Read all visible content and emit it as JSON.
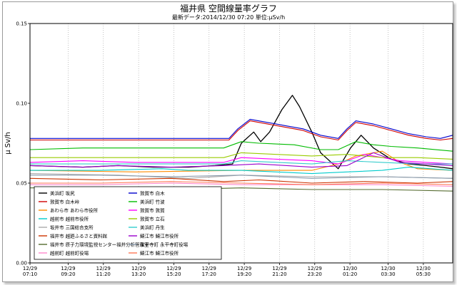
{
  "header": {
    "title": "福井県 空間線量率グラフ",
    "subtitle": "最新データ:2014/12/30 07:20 単位:μSv/h"
  },
  "chart_data": {
    "type": "line",
    "ylabel": "μ Sv/h",
    "ylim": [
      0,
      0.15
    ],
    "yticks": [
      "0.00",
      "0.05",
      "0.10",
      "0.15"
    ],
    "x_range_hours": [
      0,
      24.0
    ],
    "xticks": [
      {
        "h": 0,
        "date": "12/29",
        "time": "07:10"
      },
      {
        "h": 2.1667,
        "date": "12/29",
        "time": "09:20"
      },
      {
        "h": 4.1667,
        "date": "12/29",
        "time": "11:20"
      },
      {
        "h": 6.1667,
        "date": "12/29",
        "time": "13:20"
      },
      {
        "h": 8.1667,
        "date": "12/29",
        "time": "15:20"
      },
      {
        "h": 10.1667,
        "date": "12/29",
        "time": "17:20"
      },
      {
        "h": 12.1667,
        "date": "12/29",
        "time": "19:20"
      },
      {
        "h": 14.1667,
        "date": "12/29",
        "time": "21:20"
      },
      {
        "h": 16.1667,
        "date": "12/29",
        "time": "23:20"
      },
      {
        "h": 18.1667,
        "date": "12/30",
        "time": "01:20"
      },
      {
        "h": 20.3333,
        "date": "12/30",
        "time": "03:30"
      },
      {
        "h": 22.3333,
        "date": "12/30",
        "time": "05:30"
      }
    ],
    "grid": "vertical-dotted",
    "legend_position": "bottom-left",
    "series": [
      {
        "name": "美浜町 坂尻",
        "color": "#000000",
        "x": [
          0,
          3,
          5,
          7,
          9,
          10.5,
          11.5,
          12,
          12.7,
          13.1,
          13.6,
          14.3,
          14.9,
          15.3,
          16,
          16.5,
          17.5,
          18.2,
          18.8,
          19.5,
          20.5,
          21.5,
          22.5,
          23.3,
          24
        ],
        "y": [
          0.061,
          0.06,
          0.061,
          0.06,
          0.06,
          0.061,
          0.062,
          0.075,
          0.082,
          0.076,
          0.082,
          0.096,
          0.105,
          0.098,
          0.082,
          0.069,
          0.059,
          0.072,
          0.08,
          0.072,
          0.065,
          0.062,
          0.061,
          0.06,
          0.059
        ]
      },
      {
        "name": "敦賀市 白木峠",
        "color": "#d00000",
        "x": [
          0,
          3,
          6,
          9,
          11.3,
          11.8,
          12.5,
          13.5,
          14.5,
          15.5,
          16.5,
          17.5,
          18,
          18.5,
          19.5,
          20.5,
          21.5,
          22.5,
          23.3,
          24
        ],
        "y": [
          0.077,
          0.077,
          0.077,
          0.077,
          0.077,
          0.083,
          0.089,
          0.087,
          0.085,
          0.083,
          0.079,
          0.077,
          0.083,
          0.088,
          0.086,
          0.083,
          0.08,
          0.078,
          0.077,
          0.078
        ]
      },
      {
        "name": "あわら市 あわら市役所",
        "color": "#ff8a00",
        "x": [
          0,
          6,
          12,
          16,
          17.5,
          18.5,
          20,
          21,
          22,
          24
        ],
        "y": [
          0.058,
          0.057,
          0.058,
          0.058,
          0.062,
          0.067,
          0.07,
          0.063,
          0.059,
          0.058
        ]
      },
      {
        "name": "越前市 越前市役所",
        "color": "#00cccc",
        "x": [
          0,
          4,
          7.5,
          9,
          12,
          16,
          18,
          20,
          21.5,
          24
        ],
        "y": [
          0.058,
          0.058,
          0.059,
          0.058,
          0.058,
          0.056,
          0.057,
          0.058,
          0.06,
          0.058
        ]
      },
      {
        "name": "坂井市 三国総合支所",
        "color": "#aaaaaa",
        "x": [
          0,
          5,
          9,
          12,
          16,
          20,
          24
        ],
        "y": [
          0.056,
          0.055,
          0.053,
          0.055,
          0.054,
          0.054,
          0.053
        ]
      },
      {
        "name": "福井市 越廼ふるさと資料館",
        "color": "#cc3300",
        "x": [
          0,
          4,
          8,
          11,
          13,
          16,
          19,
          22,
          24
        ],
        "y": [
          0.053,
          0.052,
          0.053,
          0.051,
          0.052,
          0.05,
          0.051,
          0.05,
          0.051
        ]
      },
      {
        "name": "福井市 原子力環境監視センター福井分析管理室",
        "color": "#556b2f",
        "x": [
          0,
          4,
          8,
          12,
          16,
          20,
          24
        ],
        "y": [
          0.047,
          0.047,
          0.046,
          0.047,
          0.046,
          0.046,
          0.045
        ]
      },
      {
        "name": "越前町 越前町役場",
        "color": "#ff88cc",
        "x": [
          0,
          4,
          8,
          12,
          16,
          20,
          24
        ],
        "y": [
          0.049,
          0.049,
          0.05,
          0.049,
          0.049,
          0.049,
          0.048
        ]
      },
      {
        "name": "敦賀市 白木",
        "color": "#0000cc",
        "x": [
          0,
          3,
          6,
          9,
          11.3,
          11.8,
          12.5,
          13.5,
          14.5,
          15.5,
          16.5,
          17.5,
          18,
          18.5,
          19.5,
          20.5,
          21.5,
          22.5,
          23.3,
          24
        ],
        "y": [
          0.078,
          0.078,
          0.078,
          0.078,
          0.078,
          0.084,
          0.09,
          0.088,
          0.086,
          0.084,
          0.08,
          0.078,
          0.084,
          0.089,
          0.087,
          0.084,
          0.081,
          0.079,
          0.078,
          0.08
        ]
      },
      {
        "name": "美浜町 竹波",
        "color": "#00bb00",
        "x": [
          0,
          3,
          6,
          9,
          11,
          12,
          13,
          15,
          16.5,
          17.5,
          18.5,
          19.5,
          20.5,
          22,
          24
        ],
        "y": [
          0.071,
          0.072,
          0.072,
          0.072,
          0.072,
          0.076,
          0.075,
          0.074,
          0.071,
          0.071,
          0.076,
          0.074,
          0.073,
          0.072,
          0.07
        ]
      },
      {
        "name": "敦賀市 敦賀",
        "color": "#ff00ff",
        "x": [
          0,
          3,
          6,
          9,
          11,
          12,
          14,
          16,
          17.5,
          19,
          21,
          22.5,
          24
        ],
        "y": [
          0.063,
          0.064,
          0.063,
          0.063,
          0.063,
          0.066,
          0.065,
          0.064,
          0.062,
          0.068,
          0.064,
          0.063,
          0.062
        ]
      },
      {
        "name": "敦賀市 立石",
        "color": "#99cc00",
        "x": [
          0,
          3,
          6,
          9,
          11,
          12,
          14,
          16,
          18,
          20,
          22,
          24
        ],
        "y": [
          0.066,
          0.066,
          0.066,
          0.066,
          0.066,
          0.069,
          0.068,
          0.067,
          0.068,
          0.066,
          0.066,
          0.065
        ]
      },
      {
        "name": "美浜町 丹生",
        "color": "#33cccc",
        "x": [
          0,
          3,
          6,
          9,
          11,
          12,
          14,
          16,
          18,
          20,
          22,
          24
        ],
        "y": [
          0.062,
          0.062,
          0.062,
          0.062,
          0.062,
          0.064,
          0.063,
          0.062,
          0.064,
          0.063,
          0.062,
          0.062
        ]
      },
      {
        "name": "鯖江市 鯖江市役所",
        "color": "#9900cc",
        "x": [
          0,
          3,
          5,
          8,
          11,
          13,
          16,
          18,
          19.5,
          21,
          24
        ],
        "y": [
          0.061,
          0.06,
          0.061,
          0.06,
          0.061,
          0.062,
          0.06,
          0.061,
          0.069,
          0.063,
          0.061
        ]
      },
      {
        "name": "永平寺町 永平寺町役場",
        "color": "#8899aa",
        "x": [
          0,
          4,
          8,
          12,
          16,
          20,
          24
        ],
        "y": [
          0.055,
          0.055,
          0.054,
          0.055,
          0.053,
          0.054,
          0.053
        ]
      },
      {
        "name": "鯖江市 鯖江市役所",
        "color": "#ff7755",
        "x": [
          0,
          4,
          8,
          12,
          16,
          20,
          24
        ],
        "y": [
          0.05,
          0.05,
          0.051,
          0.05,
          0.049,
          0.05,
          0.049
        ]
      }
    ]
  }
}
